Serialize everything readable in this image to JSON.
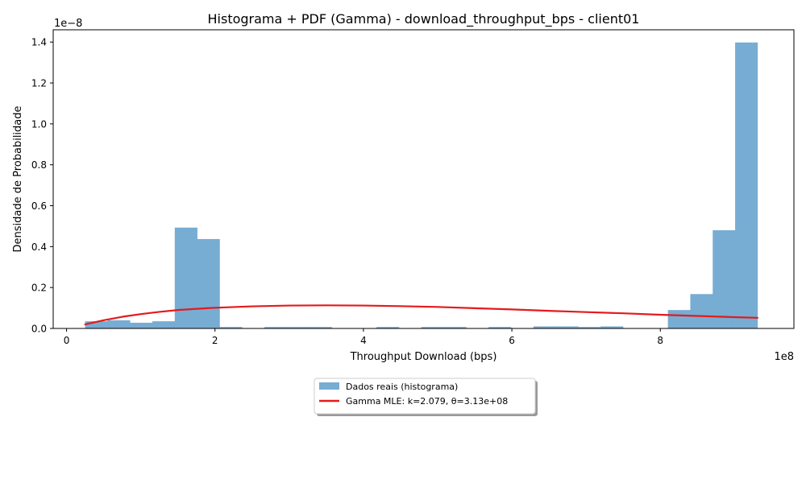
{
  "chart_data": {
    "type": "bar",
    "title": "Histograma + PDF (Gamma) - download_throughput_bps - client01",
    "xlabel": "Throughput Download (bps)",
    "ylabel": "Densidade de Probabilidade",
    "x_scale_label": "1e8",
    "y_scale_label": "1e−8",
    "xlim": [
      -0.18,
      9.8
    ],
    "ylim": [
      0,
      1.46
    ],
    "x_ticks": [
      0,
      2,
      4,
      6,
      8
    ],
    "x_tick_labels": [
      "0",
      "2",
      "4",
      "6",
      "8"
    ],
    "y_ticks": [
      0.0,
      0.2,
      0.4,
      0.6,
      0.8,
      1.0,
      1.2,
      1.4
    ],
    "y_tick_labels": [
      "0.0",
      "0.2",
      "0.4",
      "0.6",
      "0.8",
      "1.0",
      "1.2",
      "1.4"
    ],
    "grid": false,
    "legend_position": "below-center",
    "histogram": {
      "name": "Dados reais (histograma)",
      "color": "#77acd3",
      "bin_start": 0.25,
      "bin_width": 0.302,
      "values": [
        0.035,
        0.04,
        0.028,
        0.035,
        0.493,
        0.437,
        0.007,
        0.0,
        0.007,
        0.007,
        0.007,
        0.0,
        0.0,
        0.007,
        0.0,
        0.007,
        0.007,
        0.0,
        0.007,
        0.0,
        0.01,
        0.01,
        0.007,
        0.01,
        0.0,
        0.0,
        0.09,
        0.168,
        0.48,
        1.398
      ]
    },
    "pdf_curve": {
      "name": "Gamma MLE: k=2.079, θ=3.13e+08",
      "color": "#e41a1c",
      "k": 2.079,
      "theta": 3.13,
      "x": [
        0.25,
        0.5,
        0.75,
        1.0,
        1.25,
        1.5,
        1.75,
        2.0,
        2.5,
        3.0,
        3.5,
        4.0,
        4.5,
        5.0,
        5.5,
        6.0,
        6.5,
        7.0,
        7.5,
        8.0,
        8.5,
        9.0,
        9.31
      ],
      "y": [
        0.02,
        0.04,
        0.057,
        0.07,
        0.081,
        0.09,
        0.096,
        0.101,
        0.108,
        0.112,
        0.113,
        0.112,
        0.109,
        0.105,
        0.099,
        0.093,
        0.086,
        0.08,
        0.074,
        0.067,
        0.061,
        0.055,
        0.052
      ]
    }
  }
}
